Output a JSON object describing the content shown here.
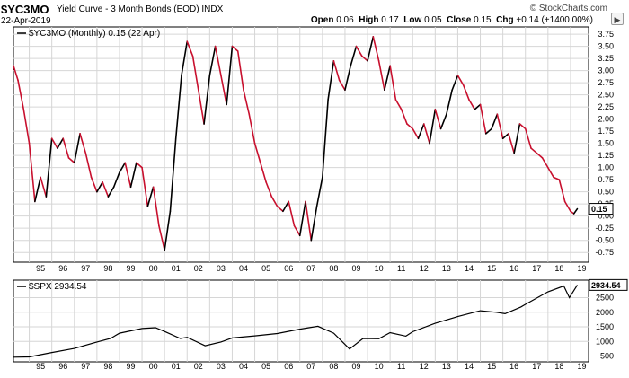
{
  "header": {
    "symbol": "$YC3MO",
    "description": "Yield Curve - 3 Month Bonds (EOD) INDX",
    "date": "22-Apr-2019",
    "ohlc": {
      "open_label": "Open",
      "open": "0.06",
      "high_label": "High",
      "high": "0.17",
      "low_label": "Low",
      "low": "0.05",
      "close_label": "Close",
      "close": "0.15",
      "chg_label": "Chg",
      "chg": "+0.14 (+1400.00%)"
    },
    "brand": "© StockCharts.com",
    "scroll_icon": "triangle-right-icon"
  },
  "chart_data": [
    {
      "type": "line",
      "legend": "$YC3MO (Monthly) 0.15 (22 Apr)",
      "last_value_label": "0.15",
      "x_tick_labels": [
        "95",
        "96",
        "97",
        "98",
        "99",
        "00",
        "01",
        "02",
        "03",
        "04",
        "05",
        "06",
        "07",
        "08",
        "09",
        "10",
        "11",
        "12",
        "13",
        "14",
        "15",
        "16",
        "17",
        "18",
        "19"
      ],
      "y_ticks": [
        -0.75,
        -0.5,
        -0.25,
        0,
        0.25,
        0.5,
        0.75,
        1,
        1.25,
        1.5,
        1.75,
        2,
        2.25,
        2.5,
        2.75,
        3,
        3.25,
        3.5,
        3.75
      ],
      "y_tick_labels": [
        "-0.75",
        "-0.50",
        "-0.25",
        "0.00",
        "0.25",
        "0.50",
        "0.75",
        "1.00",
        "1.25",
        "1.50",
        "1.75",
        "2.00",
        "2.25",
        "2.50",
        "2.75",
        "3.00",
        "3.25",
        "3.50",
        "3.75"
      ],
      "ylim": [
        -0.95,
        3.9
      ],
      "xlim": [
        1994.3,
        2019.8
      ],
      "up_color": "#000000",
      "down_color": "#c8102e",
      "series": [
        {
          "x": [
            1994.3,
            1994.5,
            1994.75,
            1995.0,
            1995.25,
            1995.5,
            1995.75,
            1996.0,
            1996.25,
            1996.5,
            1996.75,
            1997.0,
            1997.25,
            1997.5,
            1997.75,
            1998.0,
            1998.25,
            1998.5,
            1998.75,
            1999.0,
            1999.25,
            1999.5,
            1999.75,
            2000.0,
            2000.25,
            2000.5,
            2000.75,
            2001.0,
            2001.25,
            2001.5,
            2001.75,
            2002.0,
            2002.25,
            2002.5,
            2002.75,
            2003.0,
            2003.25,
            2003.5,
            2003.75,
            2004.0,
            2004.25,
            2004.5,
            2004.75,
            2005.0,
            2005.25,
            2005.5,
            2005.75,
            2006.0,
            2006.25,
            2006.5,
            2006.75,
            2007.0,
            2007.25,
            2007.5,
            2007.75,
            2008.0,
            2008.25,
            2008.5,
            2008.75,
            2009.0,
            2009.25,
            2009.5,
            2009.75,
            2010.0,
            2010.25,
            2010.5,
            2010.75,
            2011.0,
            2011.25,
            2011.5,
            2011.75,
            2012.0,
            2012.25,
            2012.5,
            2012.75,
            2013.0,
            2013.25,
            2013.5,
            2013.75,
            2014.0,
            2014.25,
            2014.5,
            2014.75,
            2015.0,
            2015.25,
            2015.5,
            2015.75,
            2016.0,
            2016.25,
            2016.5,
            2016.75,
            2017.0,
            2017.25,
            2017.5,
            2017.75,
            2018.0,
            2018.25,
            2018.5,
            2018.75,
            2019.0,
            2019.15,
            2019.3
          ],
          "y": [
            3.1,
            2.8,
            2.2,
            1.5,
            0.3,
            0.8,
            0.4,
            1.6,
            1.4,
            1.6,
            1.2,
            1.1,
            1.7,
            1.3,
            0.8,
            0.5,
            0.7,
            0.4,
            0.6,
            0.9,
            1.1,
            0.6,
            1.1,
            1.0,
            0.2,
            0.6,
            -0.2,
            -0.7,
            0.1,
            1.6,
            2.9,
            3.6,
            3.3,
            2.6,
            1.9,
            2.9,
            3.5,
            2.9,
            2.3,
            3.5,
            3.4,
            2.6,
            2.1,
            1.5,
            1.1,
            0.7,
            0.4,
            0.2,
            0.1,
            0.3,
            -0.2,
            -0.4,
            0.3,
            -0.5,
            0.2,
            0.8,
            2.4,
            3.2,
            2.8,
            2.6,
            3.1,
            3.5,
            3.3,
            3.2,
            3.7,
            3.2,
            2.6,
            3.1,
            2.4,
            2.2,
            1.9,
            1.8,
            1.6,
            1.9,
            1.5,
            2.2,
            1.8,
            2.1,
            2.6,
            2.9,
            2.7,
            2.4,
            2.2,
            2.3,
            1.7,
            1.8,
            2.1,
            1.6,
            1.7,
            1.3,
            1.9,
            1.8,
            1.4,
            1.3,
            1.2,
            1.0,
            0.8,
            0.75,
            0.3,
            0.1,
            0.05,
            0.15
          ]
        }
      ]
    },
    {
      "type": "line",
      "legend": "$SPX 2934.54",
      "last_value_label": "2934.54",
      "x_tick_labels": [
        "95",
        "96",
        "97",
        "98",
        "99",
        "00",
        "01",
        "02",
        "03",
        "04",
        "05",
        "06",
        "07",
        "08",
        "09",
        "10",
        "11",
        "12",
        "13",
        "14",
        "15",
        "16",
        "17",
        "18",
        "19"
      ],
      "y_ticks": [
        500,
        1000,
        1500,
        2000,
        2500
      ],
      "y_tick_labels": [
        "500",
        "1000",
        "1500",
        "2000",
        "2500"
      ],
      "ylim": [
        300,
        3100
      ],
      "xlim": [
        1994.3,
        2019.8
      ],
      "series": [
        {
          "x": [
            1994.3,
            1995.0,
            1996.0,
            1997.0,
            1998.0,
            1998.6,
            1999.0,
            2000.0,
            2000.6,
            2001.0,
            2001.7,
            2002.0,
            2002.8,
            2003.5,
            2004.0,
            2005.0,
            2006.0,
            2007.0,
            2007.8,
            2008.5,
            2009.2,
            2009.8,
            2010.5,
            2011.0,
            2011.7,
            2012.0,
            2013.0,
            2014.0,
            2015.0,
            2015.7,
            2016.1,
            2016.8,
            2017.0,
            2018.0,
            2018.7,
            2018.95,
            2019.3
          ],
          "y": [
            460,
            470,
            620,
            760,
            980,
            1100,
            1280,
            1440,
            1470,
            1340,
            1100,
            1140,
            850,
            980,
            1120,
            1190,
            1270,
            1420,
            1520,
            1280,
            740,
            1100,
            1090,
            1300,
            1180,
            1330,
            1620,
            1850,
            2050,
            2000,
            1950,
            2180,
            2270,
            2700,
            2900,
            2500,
            2934.54
          ]
        }
      ]
    }
  ]
}
